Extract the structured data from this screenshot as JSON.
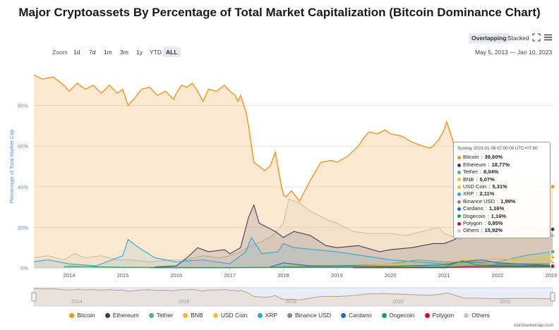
{
  "title": "Major Cryptoassets By Percentage of Total Market Capitalization (Bitcoin Dominance Chart)",
  "view_toggle": {
    "overlapping": "Overlapping",
    "stacked": "Stacked"
  },
  "zoom": {
    "label": "Zoom",
    "options": [
      "1d",
      "7d",
      "1m",
      "3m",
      "1y",
      "YTD",
      "ALL"
    ],
    "active": "ALL"
  },
  "date_range": {
    "from": "May 5, 2013",
    "separator": "—",
    "to": "Jan 10, 2023"
  },
  "tooltip": {
    "date": "Sunday 2023-01-08 07:00:00 UTC+07:00",
    "rows": [
      {
        "name": "Bitcoin",
        "value": "39,60%"
      },
      {
        "name": "Ethereum",
        "value": "18,77%"
      },
      {
        "name": "Tether",
        "value": "8,04%"
      },
      {
        "name": "BNB",
        "value": "5,07%"
      },
      {
        "name": "USD Coin",
        "value": "5,31%"
      },
      {
        "name": "XRP",
        "value": "2,11%"
      },
      {
        "name": "Binance USD",
        "value": "1,99%"
      },
      {
        "name": "Cardano",
        "value": "1,16%"
      },
      {
        "name": "Dogecoin",
        "value": "1,16%"
      },
      {
        "name": "Polygon",
        "value": "0,85%"
      },
      {
        "name": "Others",
        "value": "15,92%"
      }
    ]
  },
  "credit": "coinmarketcap.com",
  "chart_data": {
    "type": "area",
    "title": "Major Cryptoassets By Percentage of Total Market Capitalization (Bitcoin Dominance Chart)",
    "ylabel": "Percentage of Total Market Cap",
    "xlabel": "",
    "ylim": [
      0,
      100
    ],
    "y_ticks": [
      "0%",
      "20%",
      "40%",
      "60%",
      "80%"
    ],
    "y_tick_values": [
      0,
      20,
      40,
      60,
      80
    ],
    "x_ticks": [
      "2014",
      "2015",
      "2016",
      "2017",
      "2018",
      "2019",
      "2020",
      "2021",
      "2022",
      "2023"
    ],
    "x_tick_values": [
      2014,
      2015,
      2016,
      2017,
      2018,
      2019,
      2020,
      2021,
      2022,
      2023
    ],
    "xlim": [
      2013.34,
      2023.03
    ],
    "navigator_ticks": [
      "2014",
      "2016",
      "2018",
      "2020",
      "2022"
    ],
    "grid": true,
    "legend_position": "bottom",
    "series": [
      {
        "name": "Bitcoin",
        "color": "#f7931a",
        "x": [
          2013.34,
          2013.5,
          2013.7,
          2013.9,
          2014.0,
          2014.15,
          2014.3,
          2014.45,
          2014.6,
          2014.75,
          2014.9,
          2015.0,
          2015.1,
          2015.2,
          2015.35,
          2015.5,
          2015.65,
          2015.8,
          2015.95,
          2016.0,
          2016.1,
          2016.2,
          2016.3,
          2016.4,
          2016.5,
          2016.6,
          2016.75,
          2016.9,
          2017.0,
          2017.1,
          2017.15,
          2017.2,
          2017.3,
          2017.35,
          2017.45,
          2017.55,
          2017.65,
          2017.75,
          2017.85,
          2017.95,
          2018.0,
          2018.05,
          2018.15,
          2018.3,
          2018.5,
          2018.7,
          2018.9,
          2019.0,
          2019.2,
          2019.4,
          2019.5,
          2019.6,
          2019.75,
          2019.9,
          2020.0,
          2020.2,
          2020.4,
          2020.6,
          2020.75,
          2020.9,
          2021.0,
          2021.05,
          2021.15,
          2021.3,
          2021.4,
          2021.5,
          2021.6,
          2021.75,
          2021.9,
          2022.0,
          2022.2,
          2022.4,
          2022.6,
          2022.8,
          2023.0,
          2023.03
        ],
        "y": [
          95,
          93,
          94,
          90,
          87,
          91,
          88,
          90,
          86,
          90,
          86,
          88,
          80,
          83,
          88,
          89,
          85,
          87,
          83,
          86,
          90,
          89,
          91,
          87,
          82,
          88,
          87,
          90,
          87,
          85,
          82,
          85,
          77,
          70,
          52,
          50,
          48,
          50,
          57,
          42,
          36,
          35,
          38,
          33,
          43,
          52,
          53,
          52,
          55,
          60,
          64,
          67,
          66,
          68,
          66,
          65,
          62,
          60,
          59,
          63,
          68,
          72,
          64,
          50,
          43,
          42,
          44,
          42,
          40,
          40,
          42,
          42,
          42,
          40,
          40,
          40
        ]
      },
      {
        "name": "Ethereum",
        "color": "#3c3c5d",
        "x": [
          2015.6,
          2016.0,
          2016.2,
          2016.4,
          2016.6,
          2016.9,
          2017.0,
          2017.2,
          2017.35,
          2017.45,
          2017.55,
          2017.7,
          2017.85,
          2018.0,
          2018.2,
          2018.5,
          2018.8,
          2019.0,
          2019.4,
          2019.8,
          2020.0,
          2020.4,
          2020.8,
          2021.0,
          2021.2,
          2021.4,
          2021.6,
          2021.8,
          2022.0,
          2022.3,
          2022.6,
          2022.8,
          2023.0,
          2023.03
        ],
        "y": [
          0.5,
          1,
          5,
          10,
          8,
          9,
          7,
          10,
          25,
          31,
          22,
          20,
          18,
          15,
          18,
          16,
          11,
          10,
          11,
          8,
          9,
          10,
          12,
          12,
          14,
          18,
          20,
          19,
          19,
          18,
          20,
          18,
          19,
          19
        ]
      },
      {
        "name": "Tether",
        "color": "#50af95",
        "x": [
          2015.5,
          2017.0,
          2018.0,
          2019.0,
          2020.0,
          2020.5,
          2021.0,
          2021.5,
          2022.0,
          2022.5,
          2023.0,
          2023.03
        ],
        "y": [
          0,
          0,
          0.5,
          1,
          2,
          4,
          3,
          3,
          3,
          6,
          8,
          8
        ]
      },
      {
        "name": "BNB",
        "color": "#f3ba2f",
        "x": [
          2017.6,
          2018.0,
          2019.0,
          2020.0,
          2021.0,
          2021.3,
          2021.6,
          2022.0,
          2022.5,
          2023.0,
          2023.03
        ],
        "y": [
          0.2,
          1,
          1.5,
          2,
          1.5,
          4,
          4,
          4.5,
          4,
          5,
          5
        ]
      },
      {
        "name": "USD Coin",
        "color": "#e9c23a",
        "x": [
          2018.9,
          2020.0,
          2021.0,
          2021.5,
          2022.0,
          2022.5,
          2023.0,
          2023.03
        ],
        "y": [
          0.2,
          0.3,
          1,
          1.5,
          2.5,
          4,
          5.3,
          5.3
        ]
      },
      {
        "name": "XRP",
        "color": "#23a8d8",
        "x": [
          2013.34,
          2013.6,
          2014.0,
          2014.5,
          2014.8,
          2015.0,
          2015.1,
          2015.3,
          2015.6,
          2016.0,
          2016.5,
          2017.0,
          2017.3,
          2017.4,
          2017.6,
          2017.9,
          2018.0,
          2018.2,
          2019.0,
          2020.0,
          2021.0,
          2021.3,
          2022.0,
          2023.0,
          2023.03
        ],
        "y": [
          3,
          4,
          2,
          1,
          4,
          6,
          14,
          10,
          5,
          3,
          4,
          2,
          8,
          15,
          7,
          8,
          12,
          10,
          8,
          4,
          2,
          3,
          2,
          2,
          2
        ]
      },
      {
        "name": "Binance USD",
        "color": "#888888",
        "x": [
          2019.7,
          2020.5,
          2021.0,
          2021.5,
          2022.0,
          2022.5,
          2023.0,
          2023.03
        ],
        "y": [
          0.1,
          0.3,
          0.5,
          1,
          1.5,
          2,
          2,
          2
        ]
      },
      {
        "name": "Cardano",
        "color": "#2962d6",
        "x": [
          2017.75,
          2018.0,
          2018.5,
          2019.0,
          2020.0,
          2021.0,
          2021.3,
          2021.7,
          2022.0,
          2023.0,
          2023.03
        ],
        "y": [
          0.5,
          2.5,
          1,
          1,
          0.8,
          1.5,
          3,
          4,
          2.5,
          1.2,
          1.2
        ]
      },
      {
        "name": "Dogecoin",
        "color": "#16a34a",
        "x": [
          2013.9,
          2014.0,
          2015.0,
          2017.0,
          2018.0,
          2020.0,
          2021.0,
          2021.35,
          2021.6,
          2022.0,
          2023.0,
          2023.03
        ],
        "y": [
          0.5,
          0.8,
          0.3,
          0.2,
          0.3,
          0.3,
          0.5,
          3.5,
          1.5,
          1,
          1.2,
          1.2
        ]
      },
      {
        "name": "Polygon",
        "color": "#c8102e",
        "x": [
          2019.3,
          2020.0,
          2021.0,
          2021.4,
          2022.0,
          2023.0,
          2023.03
        ],
        "y": [
          0.1,
          0.1,
          0.1,
          0.5,
          0.8,
          0.85,
          0.85
        ]
      },
      {
        "name": "Others",
        "color": "#c8c8c8",
        "x": [
          2013.34,
          2013.6,
          2013.9,
          2014.1,
          2014.3,
          2014.6,
          2014.9,
          2015.1,
          2015.5,
          2015.9,
          2016.2,
          2016.5,
          2016.8,
          2017.0,
          2017.2,
          2017.4,
          2017.6,
          2017.8,
          2018.0,
          2018.1,
          2018.3,
          2018.5,
          2018.8,
          2019.0,
          2019.3,
          2019.6,
          2020.0,
          2020.3,
          2020.6,
          2020.9,
          2021.0,
          2021.3,
          2021.6,
          2022.0,
          2022.5,
          2023.0,
          2023.03
        ],
        "y": [
          5,
          6,
          4,
          7,
          5,
          6,
          4,
          4,
          3,
          4,
          4,
          6,
          5,
          6,
          8,
          11,
          13,
          16,
          22,
          34,
          32,
          28,
          24,
          22,
          18,
          17,
          17,
          16,
          18,
          20,
          17,
          14,
          18,
          17,
          16,
          16,
          16
        ]
      }
    ]
  }
}
